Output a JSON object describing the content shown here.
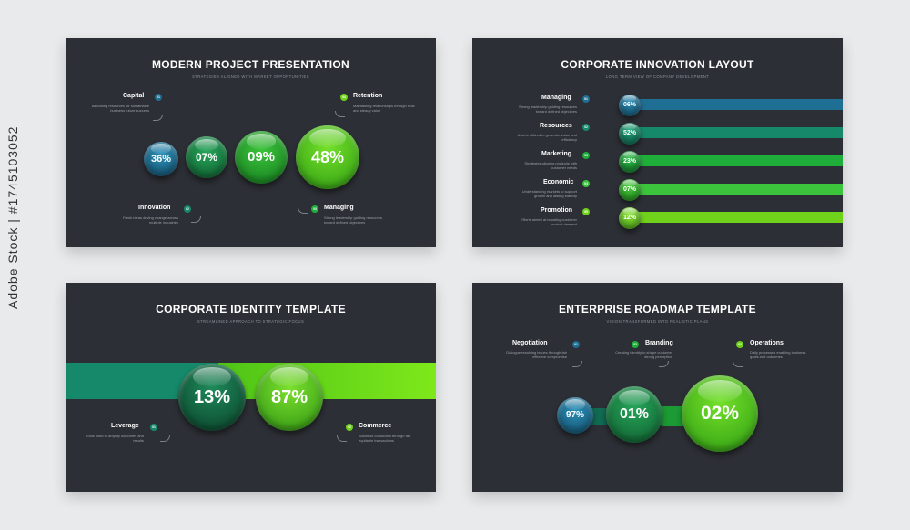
{
  "colors": {
    "blue": "#1f6e93",
    "teal": "#15896a",
    "green": "#1fae3a",
    "lime": "#6fd11a",
    "bg": "#2c2f35"
  },
  "watermark": "Adobe Stock | #1745103052",
  "slide1": {
    "title": "MODERN PROJECT PRESENTATION",
    "subtitle": "STRATEGIES ALIGNED WITH MARKET OPPORTUNITIES",
    "items": [
      {
        "label": "Capital",
        "badge": "01",
        "desc": "Allocating resources for sustainable business future success"
      },
      {
        "label": "Retention",
        "badge": "04",
        "desc": "Maintaining relationships through trust and steady value"
      },
      {
        "label": "Innovation",
        "badge": "02",
        "desc": "Fresh ideas driving change across multiple industries"
      },
      {
        "label": "Managing",
        "badge": "03",
        "desc": "Strong leadership guiding resources toward defined objectives"
      }
    ],
    "values": [
      "36%",
      "07%",
      "09%",
      "48%"
    ]
  },
  "slide2": {
    "title": "CORPORATE INNOVATION LAYOUT",
    "subtitle": "LONG TERM VIEW OF COMPANY DEVELOPMENT",
    "rows": [
      {
        "label": "Managing",
        "badge": "01",
        "desc": "Strong leadership guiding resources toward defined objectives",
        "value": "06%"
      },
      {
        "label": "Resources",
        "badge": "02",
        "desc": "Assets utilized to generate value and efficiency",
        "value": "52%"
      },
      {
        "label": "Marketing",
        "badge": "03",
        "desc": "Strategies aligning products with customer needs",
        "value": "23%"
      },
      {
        "label": "Economic",
        "badge": "04",
        "desc": "Understanding markets to support growth and lasting stability",
        "value": "07%"
      },
      {
        "label": "Promotion",
        "badge": "05",
        "desc": "Efforts aimed at boosting customer product demand",
        "value": "12%"
      }
    ]
  },
  "slide3": {
    "title": "CORPORATE IDENTITY TEMPLATE",
    "subtitle": "STREAMLINED APPROACH TO STRATEGIC FOCUS",
    "values": [
      "13%",
      "87%"
    ],
    "items": [
      {
        "label": "Leverage",
        "badge": "01",
        "desc": "Tools used to amplify outcomes and results"
      },
      {
        "label": "Commerce",
        "badge": "02",
        "desc": "Business conducted through fair equitable transactions"
      }
    ]
  },
  "slide4": {
    "title": "ENTERPRISE ROADMAP TEMPLATE",
    "subtitle": "VISION TRANSFORMED INTO REALISTIC PLANS",
    "items": [
      {
        "label": "Negotiation",
        "badge": "01",
        "desc": "Dialogue resolving issues through fair effective compromise"
      },
      {
        "label": "Branding",
        "badge": "02",
        "desc": "Creating identity to shape customer strong perception"
      },
      {
        "label": "Operations",
        "badge": "03",
        "desc": "Daily processes enabling business goals and outcomes"
      }
    ],
    "values": [
      "97%",
      "01%",
      "02%"
    ]
  }
}
